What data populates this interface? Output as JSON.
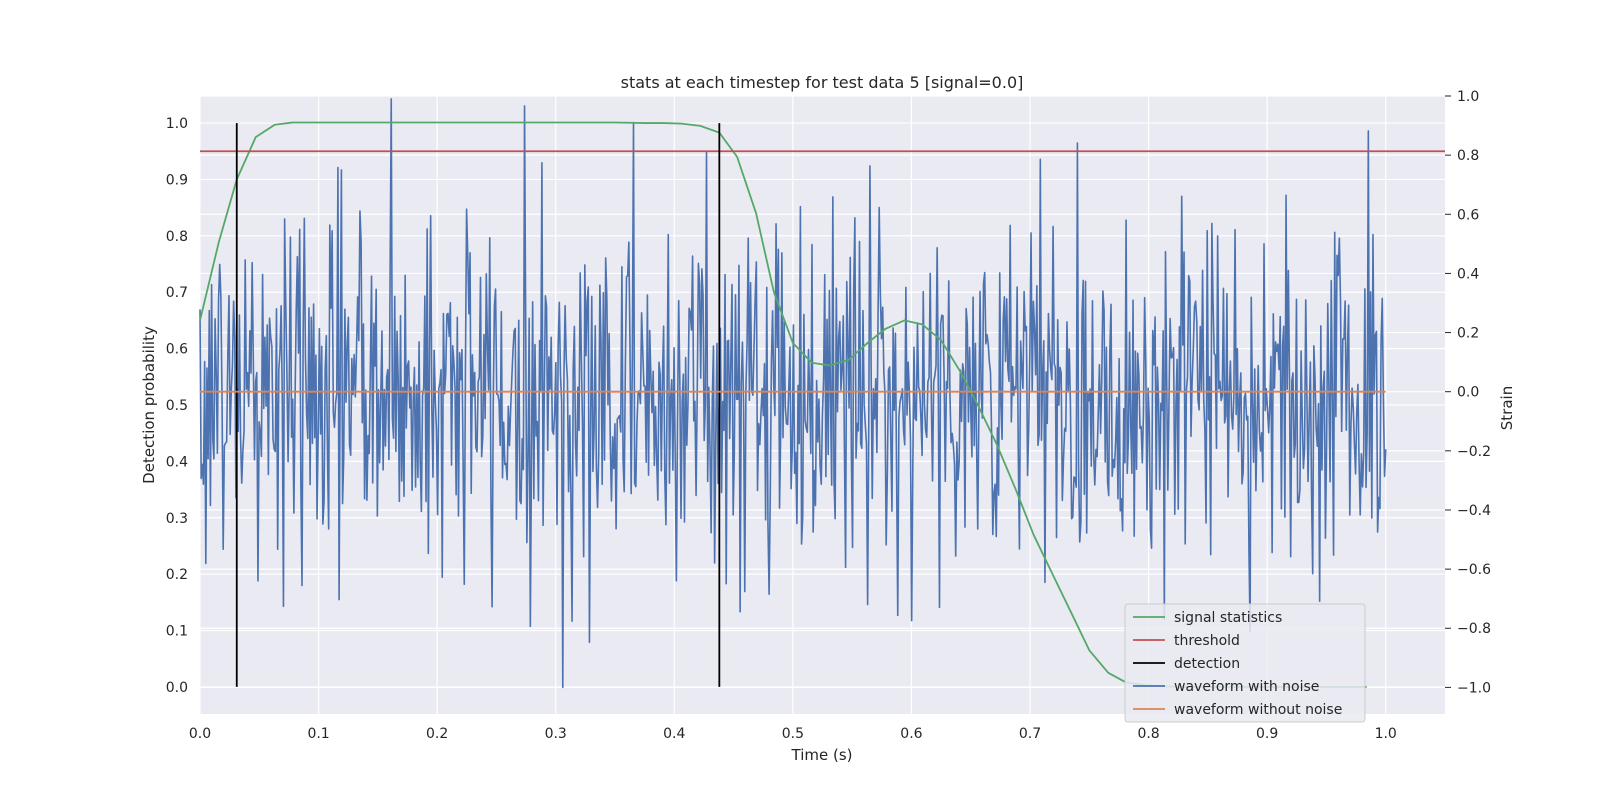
{
  "chart_data": {
    "type": "line",
    "title": "stats at each timestep for test data 5 [signal=0.0]",
    "xlabel": "Time (s)",
    "ylabel": "Detection probability",
    "y2label": "Strain",
    "xlim": [
      0.0,
      1.05
    ],
    "ylim": [
      -0.048,
      1.048
    ],
    "y2lim": [
      -1.09,
      1.0
    ],
    "xticks": [
      "0.0",
      "0.1",
      "0.2",
      "0.3",
      "0.4",
      "0.5",
      "0.6",
      "0.7",
      "0.8",
      "0.9",
      "1.0"
    ],
    "yticks": [
      "0.0",
      "0.1",
      "0.2",
      "0.3",
      "0.4",
      "0.5",
      "0.6",
      "0.7",
      "0.8",
      "0.9",
      "1.0"
    ],
    "y2ticks": [
      "−1.0",
      "−0.8",
      "−0.6",
      "−0.4",
      "−0.2",
      "0.0",
      "0.2",
      "0.4",
      "0.6",
      "0.8",
      "1.0"
    ],
    "grid": true,
    "background": "#eaeaf2",
    "legend_position": "lower right",
    "series": [
      {
        "name": "signal statistics",
        "axis": "left",
        "color": "#55a868",
        "x": [
          0.0,
          0.016,
          0.031,
          0.047,
          0.063,
          0.078,
          0.094,
          0.109,
          0.125,
          0.2,
          0.3,
          0.35,
          0.375,
          0.391,
          0.406,
          0.422,
          0.438,
          0.453,
          0.469,
          0.484,
          0.5,
          0.516,
          0.531,
          0.547,
          0.563,
          0.578,
          0.594,
          0.609,
          0.625,
          0.641,
          0.656,
          0.672,
          0.688,
          0.703,
          0.719,
          0.734,
          0.75,
          0.766,
          0.781,
          0.797,
          0.813,
          0.828,
          0.844,
          0.859,
          0.875,
          0.891,
          0.906,
          0.922,
          0.938,
          0.953,
          0.969,
          0.984
        ],
        "y": [
          0.65,
          0.79,
          0.9,
          0.975,
          0.997,
          1.001,
          1.001,
          1.001,
          1.001,
          1.001,
          1.001,
          1.001,
          1.0,
          1.0,
          0.999,
          0.995,
          0.983,
          0.94,
          0.84,
          0.7,
          0.61,
          0.575,
          0.57,
          0.58,
          0.61,
          0.635,
          0.65,
          0.643,
          0.615,
          0.56,
          0.5,
          0.43,
          0.35,
          0.27,
          0.2,
          0.135,
          0.065,
          0.025,
          0.008,
          0.003,
          0.001,
          0.0,
          0.0,
          0.0,
          0.0,
          0.0,
          0.0,
          0.0,
          0.0,
          0.0,
          0.0,
          0.0
        ]
      },
      {
        "name": "threshold",
        "axis": "left",
        "color": "#c44e52",
        "x": [
          0.0,
          1.05
        ],
        "y": [
          0.95,
          0.95
        ]
      },
      {
        "name": "detection",
        "axis": "left",
        "color": "#000000",
        "type": "vlines",
        "x": [
          0.031,
          0.438
        ],
        "ymin": 0.0,
        "ymax": 1.0
      },
      {
        "name": "waveform with noise",
        "axis": "right",
        "color": "#4c72b0",
        "type": "noise",
        "x_start": 0.0,
        "x_end": 1.0,
        "mean": 0.0,
        "std": 0.3,
        "points": 1024,
        "notable_points": [
          [
            0.161,
            0.99
          ],
          [
            0.366,
            0.91
          ],
          [
            0.306,
            -1.0
          ],
          [
            0.119,
            0.75
          ]
        ]
      },
      {
        "name": "waveform without noise",
        "axis": "right",
        "color": "#dd8452",
        "x": [
          0.0,
          1.0
        ],
        "y": [
          0.0,
          0.0
        ]
      }
    ]
  }
}
